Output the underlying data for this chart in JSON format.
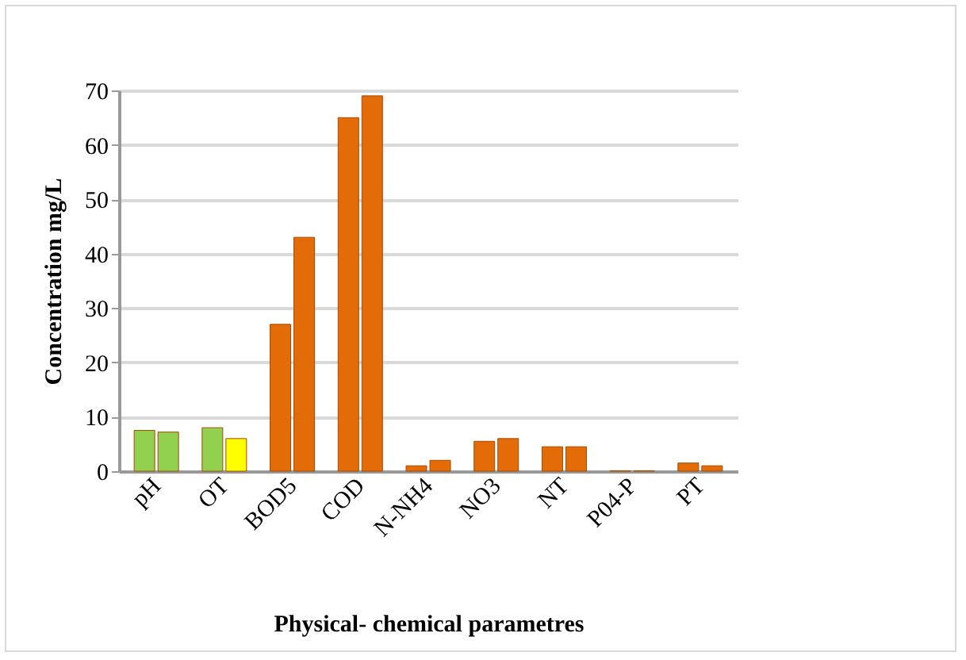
{
  "chart_data": {
    "type": "bar",
    "xlabel": "Physical- chemical parametres",
    "ylabel": "Concentration mg/L",
    "categories": [
      "pH",
      "OT",
      "BOD5",
      "COD",
      "N-NH4",
      "NO3",
      "NT",
      "P04-P",
      "PT"
    ],
    "series": [
      {
        "values": [
          7.5,
          8,
          27,
          65,
          1,
          5.5,
          4.5,
          0.1,
          1.5
        ],
        "colors": [
          "#92d050",
          "#92d050",
          "#e36c09",
          "#e36c09",
          "#e36c09",
          "#e36c09",
          "#e36c09",
          "#70ad47",
          "#e36c09"
        ]
      },
      {
        "values": [
          7.2,
          6,
          43,
          69,
          2,
          6,
          4.5,
          0.1,
          1
        ],
        "colors": [
          "#92d050",
          "#ffff00",
          "#e36c09",
          "#e36c09",
          "#e36c09",
          "#e36c09",
          "#e36c09",
          "#70ad47",
          "#e36c09"
        ]
      }
    ],
    "ylim": [
      0,
      70
    ],
    "yticks": [
      0,
      10,
      20,
      30,
      40,
      50,
      60,
      70
    ],
    "grid": "y"
  }
}
